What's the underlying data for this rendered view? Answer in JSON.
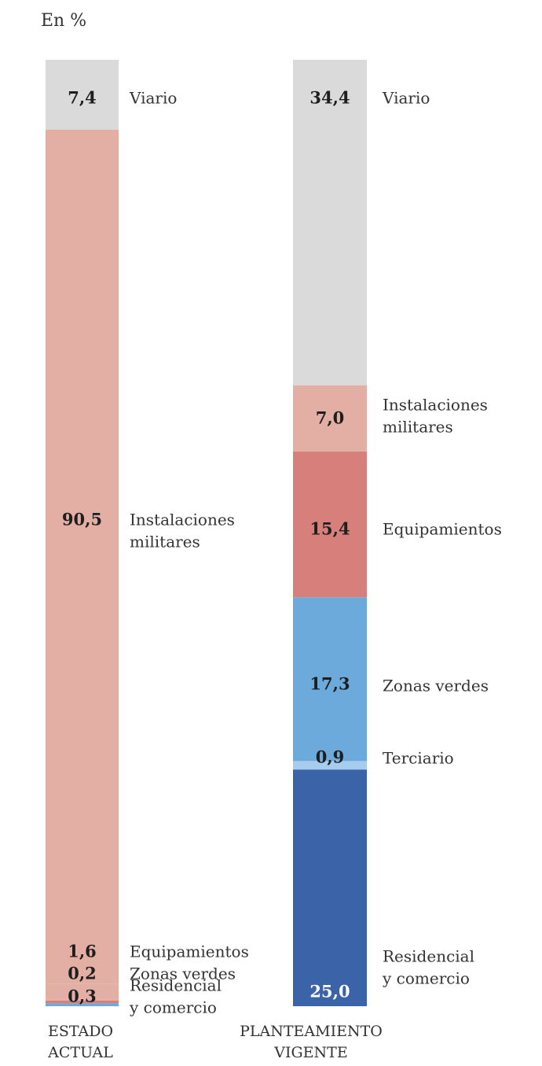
{
  "unit_label": "En %",
  "colors": {
    "viario": "#dadada",
    "instalaciones": "#e3aea3",
    "equipamientos": "#d77f7a",
    "zonas_verdes": "#6caadb",
    "terciario": "#a6cdee",
    "residencial": "#3a63a8"
  },
  "chart_data": {
    "type": "bar",
    "stacked": true,
    "unit": "En %",
    "categories": [
      [
        "ESTADO",
        "ACTUAL"
      ],
      [
        "PLANTEAMIENTO",
        "VIGENTE"
      ]
    ],
    "series_stacks": [
      {
        "segments": [
          {
            "label": [
              "Viario"
            ],
            "value": 7.4,
            "display": "7,4",
            "color_key": "viario"
          },
          {
            "label": [
              "Instalaciones",
              "militares"
            ],
            "value": 90.5,
            "display": "90,5",
            "color_key": "instalaciones"
          },
          {
            "label": [
              "Equipamientos"
            ],
            "value": 1.6,
            "display": "1,6",
            "color_key": "instalaciones"
          },
          {
            "label": [
              "Zonas verdes"
            ],
            "value": 0.2,
            "display": "0,2",
            "color_key": "instalaciones"
          },
          {
            "label": [
              "Residencial",
              "y comercio"
            ],
            "value": 0.3,
            "display": "0,3",
            "color_key": "equipamientos"
          },
          {
            "label": [],
            "value": 0.3,
            "display": "",
            "color_key": "zonas_verdes"
          }
        ]
      },
      {
        "segments": [
          {
            "label": [
              "Viario"
            ],
            "value": 34.4,
            "display": "34,4",
            "color_key": "viario"
          },
          {
            "label": [
              "Instalaciones",
              "militares"
            ],
            "value": 7.0,
            "display": "7,0",
            "color_key": "instalaciones"
          },
          {
            "label": [
              "Equipamientos"
            ],
            "value": 15.4,
            "display": "15,4",
            "color_key": "equipamientos"
          },
          {
            "label": [
              "Zonas verdes"
            ],
            "value": 17.3,
            "display": "17,3",
            "color_key": "zonas_verdes"
          },
          {
            "label": [
              "Terciario"
            ],
            "value": 0.9,
            "display": "0,9",
            "color_key": "terciario"
          },
          {
            "label": [
              "Residencial",
              "y comercio"
            ],
            "value": 25.0,
            "display": "25,0",
            "color_key": "residencial"
          }
        ]
      }
    ]
  }
}
